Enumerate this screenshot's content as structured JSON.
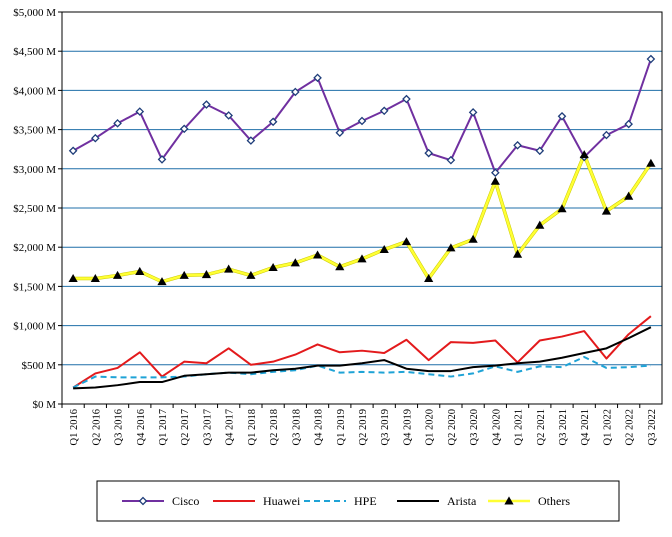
{
  "chart_data": {
    "type": "line",
    "title": "",
    "xlabel": "",
    "ylabel": "",
    "ylim": [
      0,
      5000
    ],
    "y_tick_labels": [
      "$0 M",
      "$500 M",
      "$1,000 M",
      "$1,500 M",
      "$2,000 M",
      "$2,500 M",
      "$3,000 M",
      "$3,500 M",
      "$4,000 M",
      "$4,500 M",
      "$5,000 M"
    ],
    "y_tick_values": [
      0,
      500,
      1000,
      1500,
      2000,
      2500,
      3000,
      3500,
      4000,
      4500,
      5000
    ],
    "grid": true,
    "legend_position": "bottom",
    "categories": [
      "Q1 2016",
      "Q2 2016",
      "Q3 2016",
      "Q4 2016",
      "Q1 2017",
      "Q2 2017",
      "Q3 2017",
      "Q4 2017",
      "Q1 2018",
      "Q2 2018",
      "Q3 2018",
      "Q4 2018",
      "Q1 2019",
      "Q2 2019",
      "Q3 2019",
      "Q4 2019",
      "Q1 2020",
      "Q2 2020",
      "Q3 2020",
      "Q4 2020",
      "Q1 2021",
      "Q2 2021",
      "Q3 2021",
      "Q4 2021",
      "Q1 2022",
      "Q2 2022",
      "Q3 2022"
    ],
    "series": [
      {
        "name": "Cisco",
        "color": "#7030a0",
        "marker": "diamond",
        "dash": "solid",
        "values": [
          3230,
          3390,
          3580,
          3730,
          3120,
          3510,
          3820,
          3680,
          3360,
          3600,
          3980,
          4160,
          3460,
          3610,
          3740,
          3890,
          3200,
          3110,
          3720,
          2950,
          3300,
          3230,
          3670,
          3150,
          3430,
          3570,
          4400
        ]
      },
      {
        "name": "Huawei",
        "color": "#e31a1c",
        "marker": "none",
        "dash": "solid",
        "values": [
          210,
          390,
          460,
          660,
          350,
          540,
          520,
          710,
          500,
          540,
          630,
          760,
          660,
          680,
          650,
          820,
          560,
          790,
          780,
          810,
          530,
          810,
          860,
          930,
          580,
          890,
          1120
        ]
      },
      {
        "name": "HPE",
        "color": "#1fa3d6",
        "marker": "none",
        "dash": "dashed",
        "values": [
          210,
          350,
          340,
          340,
          340,
          350,
          380,
          400,
          380,
          410,
          430,
          490,
          400,
          410,
          400,
          410,
          380,
          350,
          390,
          480,
          410,
          480,
          470,
          600,
          460,
          470,
          490
        ]
      },
      {
        "name": "Arista",
        "color": "#000000",
        "marker": "none",
        "dash": "solid",
        "values": [
          200,
          210,
          240,
          280,
          280,
          360,
          380,
          400,
          400,
          430,
          450,
          490,
          490,
          520,
          560,
          450,
          420,
          420,
          470,
          490,
          520,
          540,
          590,
          650,
          710,
          840,
          980
        ]
      },
      {
        "name": "Others",
        "color": "#ffff33",
        "marker": "triangle",
        "dash": "solid",
        "values": [
          1600,
          1600,
          1640,
          1690,
          1560,
          1640,
          1650,
          1720,
          1640,
          1740,
          1800,
          1900,
          1750,
          1850,
          1970,
          2070,
          1600,
          1990,
          2100,
          2840,
          1910,
          2280,
          2490,
          3180,
          2460,
          2650,
          3070
        ]
      }
    ]
  }
}
